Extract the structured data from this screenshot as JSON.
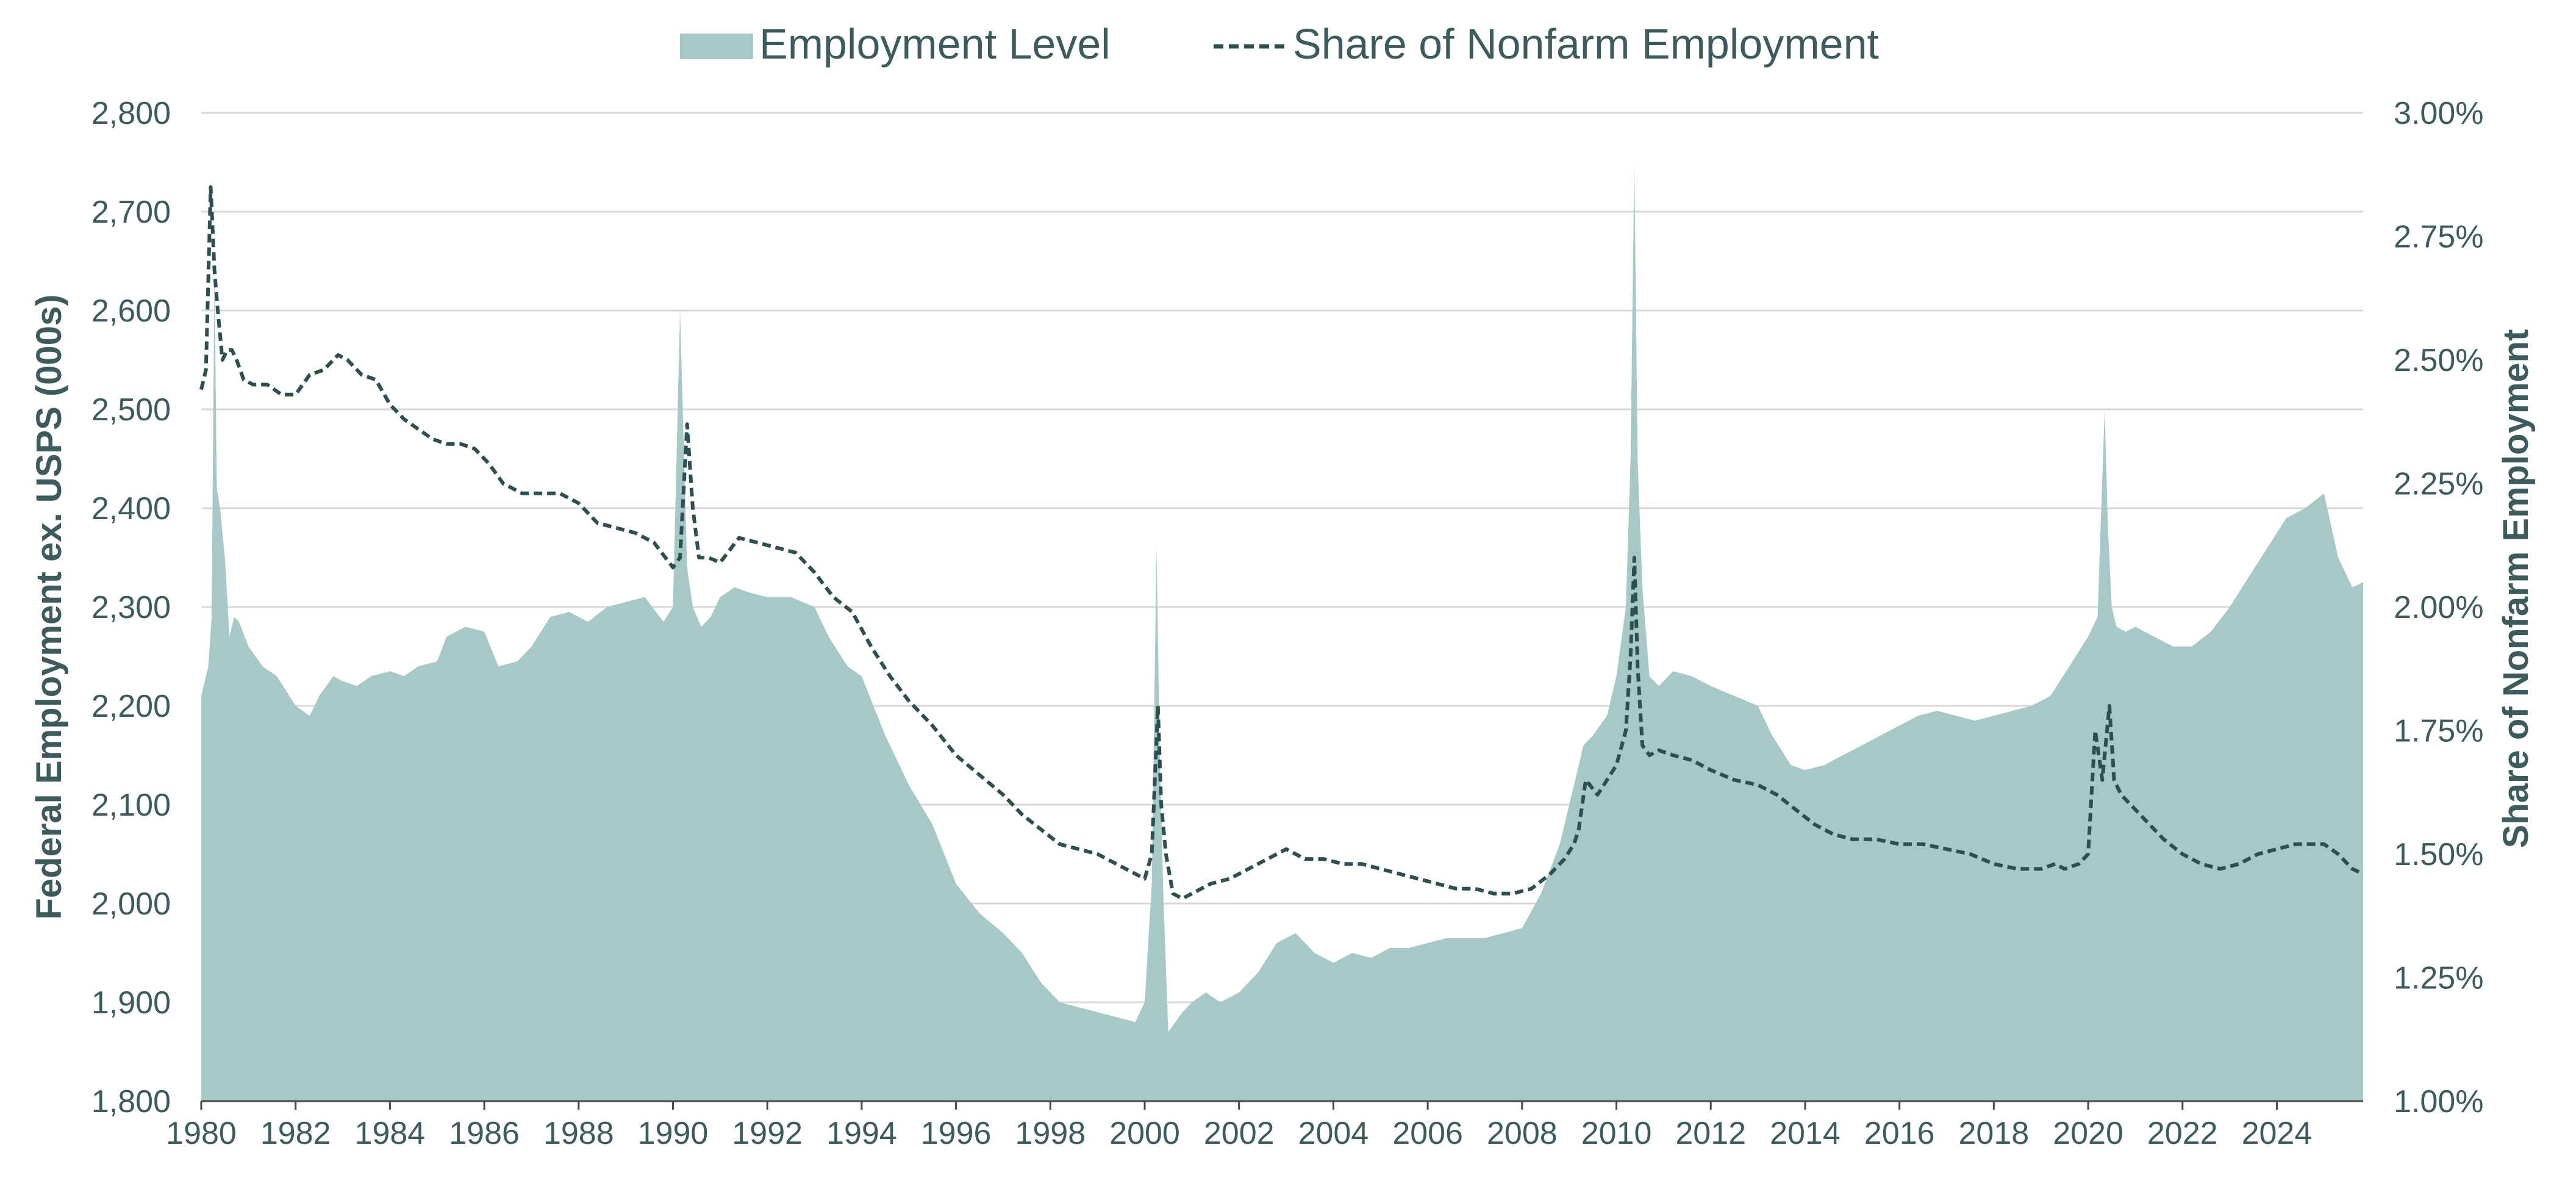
{
  "chart_data": {
    "type": "area+line",
    "legend": {
      "placement": "top-center",
      "entries": [
        "Employment Level",
        "Share of Nonfarm Employment"
      ]
    },
    "colors": {
      "area": "#a8c8c8",
      "line": "#2e4f50",
      "text": "#3d5a5c",
      "grid": "#d9d9d9",
      "axis": "#4a4a4a"
    },
    "grid": true,
    "x_axis": {
      "type": "date",
      "ticks": [
        "1980",
        "1982",
        "1984",
        "1986",
        "1988",
        "1990",
        "1992",
        "1994",
        "1996",
        "1998",
        "2000",
        "2002",
        "2004",
        "2006",
        "2008",
        "2010",
        "2012",
        "2014",
        "2016",
        "2018",
        "2020",
        "2022",
        "2024"
      ],
      "range": [
        1980.0,
        2025.83
      ]
    },
    "y_left": {
      "label": "Federal Employment ex. USPS (000s)",
      "range": [
        1800,
        2800
      ],
      "ticks": [
        "1,800",
        "1,900",
        "2,000",
        "2,100",
        "2,200",
        "2,300",
        "2,400",
        "2,500",
        "2,600",
        "2,700",
        "2,800"
      ]
    },
    "y_right": {
      "label": "Share of Nonfarm Employment",
      "range": [
        1.0,
        3.0
      ],
      "ticks": [
        "1.00%",
        "1.25%",
        "1.50%",
        "1.75%",
        "2.00%",
        "2.25%",
        "2.50%",
        "2.75%",
        "3.00%"
      ]
    },
    "series": [
      {
        "name": "Employment Level",
        "axis": "left",
        "style": "area",
        "x": [
          1980.0,
          1980.15,
          1980.22,
          1980.28,
          1980.33,
          1980.4,
          1980.5,
          1980.6,
          1980.7,
          1980.8,
          1981.0,
          1981.3,
          1981.6,
          1982.0,
          1982.3,
          1982.5,
          1982.8,
          1983.0,
          1983.3,
          1983.6,
          1984.0,
          1984.3,
          1984.6,
          1985.0,
          1985.2,
          1985.6,
          1986.0,
          1986.3,
          1986.7,
          1987.0,
          1987.4,
          1987.8,
          1988.2,
          1988.6,
          1989.0,
          1989.4,
          1989.8,
          1990.0,
          1990.15,
          1990.3,
          1990.42,
          1990.6,
          1990.8,
          1991.0,
          1991.3,
          1991.6,
          1992.0,
          1992.5,
          1993.0,
          1993.3,
          1993.7,
          1994.0,
          1994.5,
          1995.0,
          1995.5,
          1996.0,
          1996.5,
          1997.0,
          1997.4,
          1997.8,
          1998.2,
          1998.6,
          1999.0,
          1999.4,
          1999.8,
          2000.0,
          2000.15,
          2000.25,
          2000.32,
          2000.4,
          2000.5,
          2000.65,
          2000.8,
          2001.0,
          2001.3,
          2001.6,
          2002.0,
          2002.4,
          2002.8,
          2003.2,
          2003.6,
          2004.0,
          2004.4,
          2004.8,
          2005.2,
          2005.6,
          2006.0,
          2006.4,
          2006.8,
          2007.2,
          2007.6,
          2008.0,
          2008.4,
          2008.8,
          2009.0,
          2009.2,
          2009.3,
          2009.5,
          2009.8,
          2010.0,
          2010.2,
          2010.3,
          2010.38,
          2010.45,
          2010.55,
          2010.7,
          2010.9,
          2011.2,
          2011.6,
          2012.0,
          2012.5,
          2013.0,
          2013.3,
          2013.7,
          2014.0,
          2014.4,
          2014.8,
          2015.2,
          2015.6,
          2016.0,
          2016.4,
          2016.8,
          2017.2,
          2017.6,
          2018.0,
          2018.4,
          2018.8,
          2019.2,
          2019.6,
          2020.0,
          2020.2,
          2020.35,
          2020.42,
          2020.5,
          2020.6,
          2020.8,
          2021.0,
          2021.4,
          2021.8,
          2022.2,
          2022.6,
          2023.0,
          2023.4,
          2023.8,
          2024.2,
          2024.6,
          2025.0,
          2025.3,
          2025.6,
          2025.83
        ],
        "y": [
          2210,
          2240,
          2290,
          2640,
          2420,
          2400,
          2350,
          2270,
          2290,
          2285,
          2260,
          2240,
          2230,
          2200,
          2190,
          2210,
          2230,
          2225,
          2220,
          2230,
          2235,
          2230,
          2240,
          2245,
          2270,
          2280,
          2275,
          2240,
          2245,
          2260,
          2290,
          2295,
          2285,
          2300,
          2305,
          2310,
          2285,
          2300,
          2600,
          2340,
          2300,
          2280,
          2290,
          2310,
          2320,
          2315,
          2310,
          2310,
          2300,
          2270,
          2240,
          2230,
          2170,
          2120,
          2080,
          2020,
          1990,
          1970,
          1950,
          1920,
          1900,
          1895,
          1890,
          1885,
          1880,
          1900,
          2020,
          2360,
          2150,
          2000,
          1870,
          1880,
          1890,
          1900,
          1910,
          1900,
          1910,
          1930,
          1960,
          1970,
          1950,
          1940,
          1950,
          1945,
          1955,
          1955,
          1960,
          1965,
          1965,
          1965,
          1970,
          1975,
          2010,
          2060,
          2100,
          2140,
          2160,
          2170,
          2190,
          2230,
          2300,
          2450,
          2750,
          2450,
          2320,
          2230,
          2220,
          2235,
          2230,
          2220,
          2210,
          2200,
          2170,
          2140,
          2135,
          2140,
          2150,
          2160,
          2170,
          2180,
          2190,
          2195,
          2190,
          2185,
          2190,
          2195,
          2200,
          2210,
          2240,
          2270,
          2290,
          2500,
          2380,
          2300,
          2280,
          2275,
          2280,
          2270,
          2260,
          2260,
          2275,
          2300,
          2330,
          2360,
          2390,
          2400,
          2415,
          2350,
          2320,
          2325
        ]
      },
      {
        "name": "Share of Nonfarm Employment",
        "axis": "right",
        "style": "dashed-line",
        "x": [
          1980.0,
          1980.1,
          1980.2,
          1980.28,
          1980.35,
          1980.45,
          1980.55,
          1980.65,
          1980.75,
          1980.9,
          1981.1,
          1981.4,
          1981.7,
          1982.0,
          1982.3,
          1982.6,
          1982.9,
          1983.1,
          1983.4,
          1983.7,
          1984.0,
          1984.3,
          1984.6,
          1984.9,
          1985.2,
          1985.5,
          1985.8,
          1986.1,
          1986.4,
          1986.8,
          1987.2,
          1987.6,
          1988.0,
          1988.4,
          1988.8,
          1989.2,
          1989.6,
          1990.0,
          1990.15,
          1990.3,
          1990.42,
          1990.55,
          1990.75,
          1991.0,
          1991.4,
          1991.8,
          1992.2,
          1992.6,
          1993.0,
          1993.4,
          1993.8,
          1994.2,
          1994.6,
          1995.0,
          1995.5,
          1996.0,
          1996.5,
          1997.0,
          1997.4,
          1997.8,
          1998.2,
          1998.6,
          1999.0,
          1999.4,
          1999.8,
          2000.0,
          2000.15,
          2000.28,
          2000.35,
          2000.45,
          2000.6,
          2000.8,
          2001.0,
          2001.4,
          2001.8,
          2002.2,
          2002.6,
          2003.0,
          2003.4,
          2003.8,
          2004.2,
          2004.6,
          2005.0,
          2005.4,
          2005.8,
          2006.2,
          2006.6,
          2007.0,
          2007.4,
          2007.8,
          2008.2,
          2008.6,
          2008.9,
          2009.1,
          2009.2,
          2009.35,
          2009.6,
          2009.8,
          2010.0,
          2010.2,
          2010.3,
          2010.38,
          2010.45,
          2010.55,
          2010.7,
          2010.9,
          2011.2,
          2011.6,
          2012.0,
          2012.5,
          2013.0,
          2013.4,
          2013.8,
          2014.2,
          2014.6,
          2015.0,
          2015.5,
          2016.0,
          2016.5,
          2017.0,
          2017.5,
          2018.0,
          2018.5,
          2019.0,
          2019.3,
          2019.5,
          2019.8,
          2020.0,
          2020.15,
          2020.3,
          2020.45,
          2020.55,
          2020.7,
          2020.9,
          2021.2,
          2021.6,
          2022.0,
          2022.4,
          2022.8,
          2023.2,
          2023.6,
          2024.0,
          2024.4,
          2024.8,
          2025.0,
          2025.3,
          2025.6,
          2025.83
        ],
        "y": [
          2.44,
          2.48,
          2.85,
          2.68,
          2.6,
          2.5,
          2.52,
          2.52,
          2.5,
          2.46,
          2.45,
          2.45,
          2.43,
          2.43,
          2.47,
          2.48,
          2.51,
          2.5,
          2.47,
          2.46,
          2.41,
          2.38,
          2.36,
          2.34,
          2.33,
          2.33,
          2.32,
          2.29,
          2.25,
          2.23,
          2.23,
          2.23,
          2.21,
          2.17,
          2.16,
          2.15,
          2.13,
          2.08,
          2.1,
          2.37,
          2.2,
          2.1,
          2.1,
          2.09,
          2.14,
          2.13,
          2.12,
          2.11,
          2.07,
          2.02,
          1.99,
          1.92,
          1.86,
          1.81,
          1.76,
          1.7,
          1.66,
          1.62,
          1.58,
          1.55,
          1.52,
          1.51,
          1.5,
          1.48,
          1.46,
          1.45,
          1.5,
          1.8,
          1.6,
          1.5,
          1.42,
          1.41,
          1.42,
          1.44,
          1.45,
          1.47,
          1.49,
          1.51,
          1.49,
          1.49,
          1.48,
          1.48,
          1.47,
          1.46,
          1.45,
          1.44,
          1.43,
          1.43,
          1.42,
          1.42,
          1.43,
          1.46,
          1.49,
          1.52,
          1.55,
          1.65,
          1.62,
          1.65,
          1.68,
          1.75,
          1.9,
          2.1,
          1.88,
          1.72,
          1.7,
          1.71,
          1.7,
          1.69,
          1.67,
          1.65,
          1.64,
          1.62,
          1.59,
          1.56,
          1.54,
          1.53,
          1.53,
          1.52,
          1.52,
          1.51,
          1.5,
          1.48,
          1.47,
          1.47,
          1.48,
          1.47,
          1.48,
          1.5,
          1.75,
          1.65,
          1.8,
          1.65,
          1.62,
          1.6,
          1.57,
          1.53,
          1.5,
          1.48,
          1.47,
          1.48,
          1.5,
          1.51,
          1.52,
          1.52,
          1.52,
          1.5,
          1.47,
          1.46
        ]
      }
    ]
  }
}
